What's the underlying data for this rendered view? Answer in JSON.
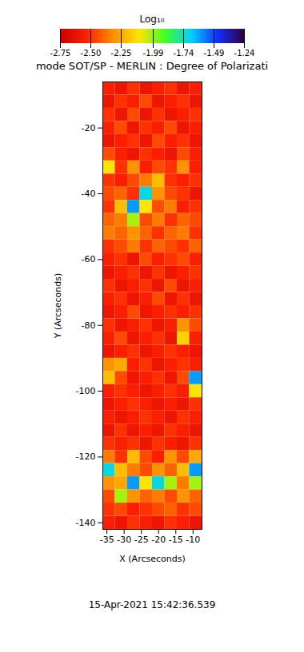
{
  "chart_data": {
    "type": "heatmap",
    "title": "mode SOT/SP - MERLIN : Degree of Polarizati",
    "caption": "15-Apr-2021 15:42:36.539",
    "x_label": "X (Arcseconds)",
    "y_label": "Y (Arcseconds)",
    "xlim": [
      -36.2,
      -7.4
    ],
    "ylim": [
      -142,
      -6
    ],
    "xticks": [
      -35,
      -30,
      -25,
      -20,
      -15,
      -10
    ],
    "yticks": [
      -20,
      -40,
      -60,
      -80,
      -100,
      -120,
      -140
    ],
    "grid": false,
    "x": [
      -34.4,
      -30.8,
      -27.2,
      -23.6,
      -20.0,
      -16.4,
      -12.8,
      -9.2
    ],
    "y": [
      -8,
      -12,
      -16,
      -20,
      -24,
      -28,
      -32,
      -36,
      -40,
      -44,
      -48,
      -52,
      -56,
      -60,
      -64,
      -68,
      -72,
      -76,
      -80,
      -84,
      -88,
      -92,
      -96,
      -100,
      -104,
      -108,
      -112,
      -116,
      -120,
      -124,
      -128,
      -132,
      -136,
      -140
    ],
    "values": [
      [
        -2.55,
        -2.6,
        -2.5,
        -2.6,
        -2.55,
        -2.5,
        -2.6,
        -2.55
      ],
      [
        -2.6,
        -2.5,
        -2.55,
        -2.45,
        -2.6,
        -2.55,
        -2.5,
        -2.6
      ],
      [
        -2.5,
        -2.6,
        -2.45,
        -2.6,
        -2.5,
        -2.6,
        -2.55,
        -2.5
      ],
      [
        -2.55,
        -2.45,
        -2.6,
        -2.5,
        -2.55,
        -2.45,
        -2.6,
        -2.55
      ],
      [
        -2.6,
        -2.55,
        -2.5,
        -2.6,
        -2.45,
        -2.55,
        -2.5,
        -2.6
      ],
      [
        -2.45,
        -2.55,
        -2.6,
        -2.5,
        -2.55,
        -2.6,
        -2.45,
        -2.55
      ],
      [
        -2.1,
        -2.5,
        -2.3,
        -2.55,
        -2.45,
        -2.5,
        -2.3,
        -2.55
      ],
      [
        -2.5,
        -2.55,
        -2.45,
        -2.35,
        -2.2,
        -2.5,
        -2.55,
        -2.5
      ],
      [
        -2.45,
        -2.4,
        -2.5,
        -1.7,
        -2.3,
        -2.45,
        -2.5,
        -2.6
      ],
      [
        -2.5,
        -2.2,
        -1.6,
        -2.1,
        -2.45,
        -2.35,
        -2.55,
        -2.5
      ],
      [
        -2.4,
        -2.35,
        -2.0,
        -2.45,
        -2.35,
        -2.5,
        -2.4,
        -2.45
      ],
      [
        -2.35,
        -2.4,
        -2.3,
        -2.4,
        -2.5,
        -2.4,
        -2.35,
        -2.5
      ],
      [
        -2.5,
        -2.45,
        -2.35,
        -2.5,
        -2.4,
        -2.45,
        -2.5,
        -2.4
      ],
      [
        -2.55,
        -2.5,
        -2.6,
        -2.45,
        -2.55,
        -2.5,
        -2.45,
        -2.55
      ],
      [
        -2.6,
        -2.55,
        -2.5,
        -2.6,
        -2.5,
        -2.6,
        -2.55,
        -2.5
      ],
      [
        -2.5,
        -2.6,
        -2.55,
        -2.5,
        -2.6,
        -2.45,
        -2.6,
        -2.55
      ],
      [
        -2.55,
        -2.5,
        -2.6,
        -2.55,
        -2.45,
        -2.6,
        -2.5,
        -2.6
      ],
      [
        -2.6,
        -2.55,
        -2.45,
        -2.6,
        -2.55,
        -2.5,
        -2.55,
        -2.5
      ],
      [
        -2.5,
        -2.6,
        -2.55,
        -2.5,
        -2.6,
        -2.55,
        -2.3,
        -2.45
      ],
      [
        -2.55,
        -2.45,
        -2.6,
        -2.55,
        -2.5,
        -2.6,
        -2.15,
        -2.55
      ],
      [
        -2.6,
        -2.55,
        -2.5,
        -2.6,
        -2.55,
        -2.5,
        -2.55,
        -2.6
      ],
      [
        -2.3,
        -2.25,
        -2.55,
        -2.5,
        -2.6,
        -2.55,
        -2.5,
        -2.55
      ],
      [
        -2.2,
        -2.45,
        -2.6,
        -2.55,
        -2.5,
        -2.6,
        -2.45,
        -1.6
      ],
      [
        -2.55,
        -2.5,
        -2.55,
        -2.6,
        -2.55,
        -2.5,
        -2.55,
        -2.1
      ],
      [
        -2.6,
        -2.55,
        -2.5,
        -2.55,
        -2.6,
        -2.55,
        -2.6,
        -2.5
      ],
      [
        -2.55,
        -2.6,
        -2.55,
        -2.5,
        -2.55,
        -2.6,
        -2.5,
        -2.55
      ],
      [
        -2.6,
        -2.5,
        -2.6,
        -2.55,
        -2.6,
        -2.5,
        -2.55,
        -2.6
      ],
      [
        -2.5,
        -2.55,
        -2.5,
        -2.6,
        -2.5,
        -2.55,
        -2.6,
        -2.5
      ],
      [
        -2.35,
        -2.5,
        -2.2,
        -2.45,
        -2.55,
        -2.3,
        -2.45,
        -2.25
      ],
      [
        -1.7,
        -2.2,
        -2.35,
        -2.45,
        -2.3,
        -2.4,
        -2.2,
        -1.6
      ],
      [
        -2.3,
        -2.25,
        -1.6,
        -2.1,
        -1.7,
        -2.0,
        -2.35,
        -2.0
      ],
      [
        -2.45,
        -2.0,
        -2.3,
        -2.4,
        -2.35,
        -2.45,
        -2.3,
        -2.4
      ],
      [
        -2.5,
        -2.45,
        -2.55,
        -2.5,
        -2.45,
        -2.4,
        -2.5,
        -2.45
      ],
      [
        -2.55,
        -2.6,
        -2.5,
        -2.55,
        -2.6,
        -2.5,
        -2.55,
        -2.6
      ]
    ],
    "colorbar": {
      "title": "Log₁₀",
      "range": [
        -2.75,
        -1.24
      ],
      "ticks": [
        {
          "value": -2.75,
          "label": "-2.75"
        },
        {
          "value": -2.5,
          "label": "-2.50"
        },
        {
          "value": -2.25,
          "label": "-2.25"
        },
        {
          "value": -1.99,
          "label": "-1.99"
        },
        {
          "value": -1.74,
          "label": "-1.74"
        },
        {
          "value": -1.49,
          "label": "-1.49"
        },
        {
          "value": -1.24,
          "label": "-1.24"
        }
      ]
    }
  }
}
